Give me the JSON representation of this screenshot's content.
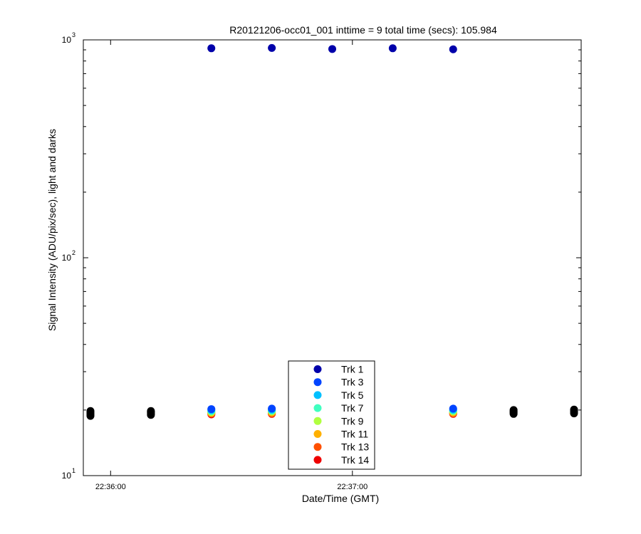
{
  "chart_data": {
    "type": "scatter",
    "title": "R20121206-occ01_001 inttime = 9 total time (secs): 105.984",
    "xlabel": "Date/Time (GMT)",
    "ylabel": "Signal Intensity (ADU/pix/sec), light and darks",
    "y_scale": "log",
    "ylim": [
      10,
      1000
    ],
    "xlim": [
      "22:35:55",
      "22:37:55"
    ],
    "x_ticks": [
      "22:36:00",
      "22:37:00"
    ],
    "y_ticks": [
      {
        "base": "10",
        "exp": "1",
        "value": 10
      },
      {
        "base": "10",
        "exp": "2",
        "value": 100
      },
      {
        "base": "10",
        "exp": "3",
        "value": 1000
      }
    ],
    "grid": false,
    "legend_position": "bottom-center",
    "series": [
      {
        "name": "Trk 1",
        "color": "#0000aa",
        "points": [
          [
            "22:36:25",
            915
          ],
          [
            "22:36:40",
            918
          ],
          [
            "22:36:55",
            908
          ],
          [
            "22:37:10",
            915
          ],
          [
            "22:37:25",
            905
          ]
        ]
      },
      {
        "name": "Trk 3",
        "color": "#0044ff",
        "points": [
          [
            "22:36:25",
            20.2
          ],
          [
            "22:36:40",
            20.3
          ],
          [
            "22:37:25",
            20.3
          ]
        ]
      },
      {
        "name": "Trk 5",
        "color": "#00c0ff",
        "points": [
          [
            "22:36:25",
            20.0
          ],
          [
            "22:36:40",
            20.1
          ],
          [
            "22:37:25",
            20.1
          ]
        ]
      },
      {
        "name": "Trk 7",
        "color": "#40ffc0",
        "points": [
          [
            "22:36:25",
            19.8
          ],
          [
            "22:36:40",
            19.9
          ],
          [
            "22:37:25",
            19.9
          ]
        ]
      },
      {
        "name": "Trk 9",
        "color": "#b0ff40",
        "points": [
          [
            "22:36:25",
            19.6
          ],
          [
            "22:36:40",
            19.7
          ],
          [
            "22:37:25",
            19.7
          ]
        ]
      },
      {
        "name": "Trk 11",
        "color": "#ffb000",
        "points": [
          [
            "22:36:25",
            19.4
          ],
          [
            "22:36:40",
            19.5
          ],
          [
            "22:37:25",
            19.5
          ]
        ]
      },
      {
        "name": "Trk 13",
        "color": "#ff5000",
        "points": [
          [
            "22:36:25",
            19.3
          ],
          [
            "22:36:40",
            19.3
          ],
          [
            "22:37:25",
            19.3
          ]
        ]
      },
      {
        "name": "Trk 14",
        "color": "#ee0000",
        "points": [
          [
            "22:36:25",
            19.1
          ],
          [
            "22:36:40",
            19.2
          ],
          [
            "22:37:25",
            19.2
          ]
        ]
      },
      {
        "name": "",
        "color": "#000000",
        "points": [
          [
            "22:35:55",
            18.8
          ],
          [
            "22:35:55",
            19.0
          ],
          [
            "22:35:55",
            19.2
          ],
          [
            "22:35:55",
            19.4
          ],
          [
            "22:35:55",
            19.6
          ],
          [
            "22:35:55",
            19.8
          ],
          [
            "22:36:10",
            19.0
          ],
          [
            "22:36:10",
            19.2
          ],
          [
            "22:36:10",
            19.4
          ],
          [
            "22:36:10",
            19.6
          ],
          [
            "22:36:10",
            19.8
          ],
          [
            "22:37:40",
            19.2
          ],
          [
            "22:37:40",
            19.4
          ],
          [
            "22:37:40",
            19.6
          ],
          [
            "22:37:40",
            19.8
          ],
          [
            "22:37:40",
            20.0
          ],
          [
            "22:37:55",
            19.3
          ],
          [
            "22:37:55",
            19.5
          ],
          [
            "22:37:55",
            19.7
          ],
          [
            "22:37:55",
            19.9
          ],
          [
            "22:37:55",
            20.1
          ]
        ]
      }
    ]
  }
}
